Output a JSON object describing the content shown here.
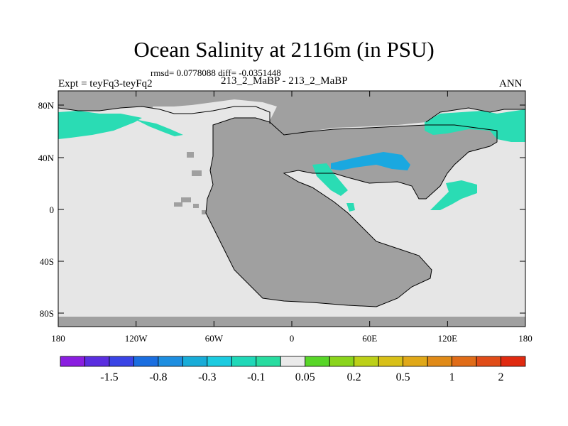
{
  "title": "Ocean Salinity at 2116m (in PSU)",
  "stats": "rmsd= 0.0778088 diff= -0.0351448",
  "experiment": "Expt = teyFq3-teyFq2",
  "period": "213_2_MaBP - 213_2_MaBP",
  "season": "ANN",
  "lat_labels": [
    "80N",
    "40N",
    "0",
    "40S",
    "80S"
  ],
  "lon_labels": [
    "180",
    "120W",
    "60W",
    "0",
    "60E",
    "120E",
    "180"
  ],
  "colorbar": {
    "colors": [
      "#8a1ee0",
      "#5a2ee0",
      "#3a44e6",
      "#1a6ee0",
      "#1e8ee0",
      "#18acd8",
      "#1ccbe0",
      "#20d8b8",
      "#28dca0",
      "#eaeaea",
      "#58d628",
      "#8ad41c",
      "#bcd018",
      "#d8c018",
      "#e0a818",
      "#e08a18",
      "#e06c18",
      "#e04c18",
      "#e02a10"
    ],
    "labels": [
      "-1.5",
      "-0.8",
      "-0.3",
      "-0.1",
      "0.05",
      "0.2",
      "0.5",
      "1",
      "2"
    ]
  },
  "map_colors": {
    "land": "#a0a0a0",
    "ocean": "#e6e6e6",
    "positive_small": "#2adcb4",
    "negative_small": "#1aa8e0",
    "outline": "#000000"
  }
}
